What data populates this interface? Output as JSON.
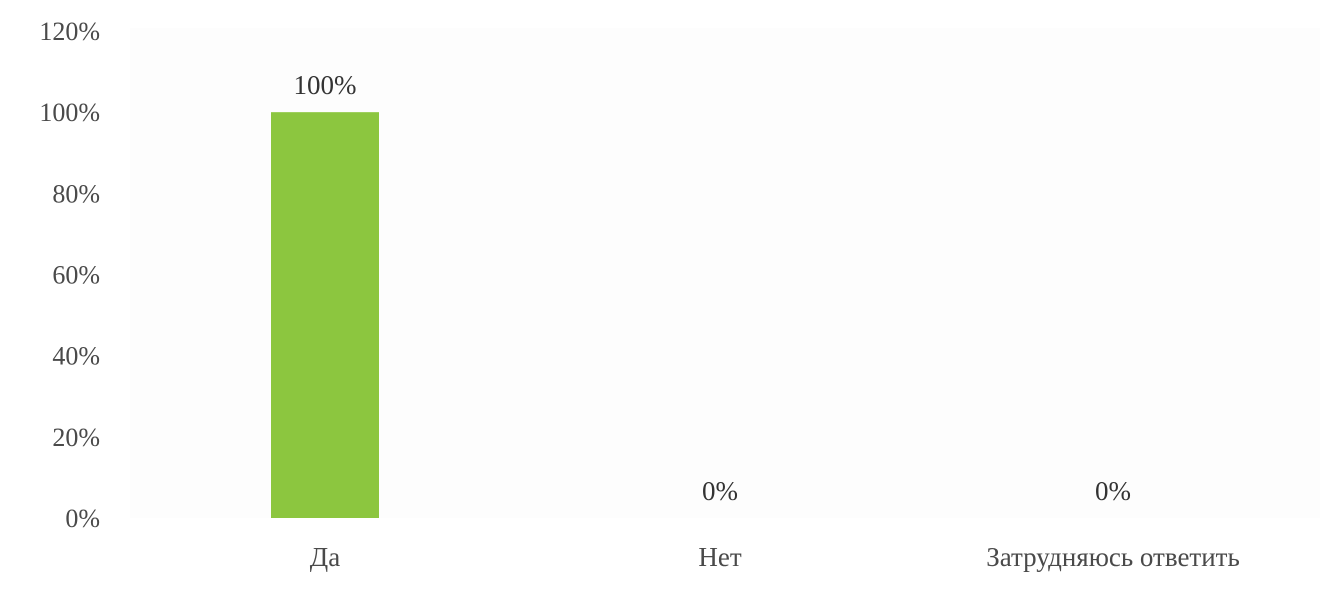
{
  "chart_data": {
    "type": "bar",
    "categories": [
      "Да",
      "Нет",
      "Затрудняюсь ответить"
    ],
    "values": [
      100,
      0,
      0
    ],
    "data_labels": [
      "100%",
      "0%",
      "0%"
    ],
    "y_ticks": [
      "0%",
      "20%",
      "40%",
      "60%",
      "80%",
      "100%",
      "120%"
    ],
    "ylim": [
      0,
      120
    ],
    "grid": false,
    "legend": "none",
    "title": "",
    "xlabel": "",
    "ylabel": "",
    "colors": {
      "bar": "#8cc63f",
      "plot_background": "#fdfdfd"
    }
  }
}
